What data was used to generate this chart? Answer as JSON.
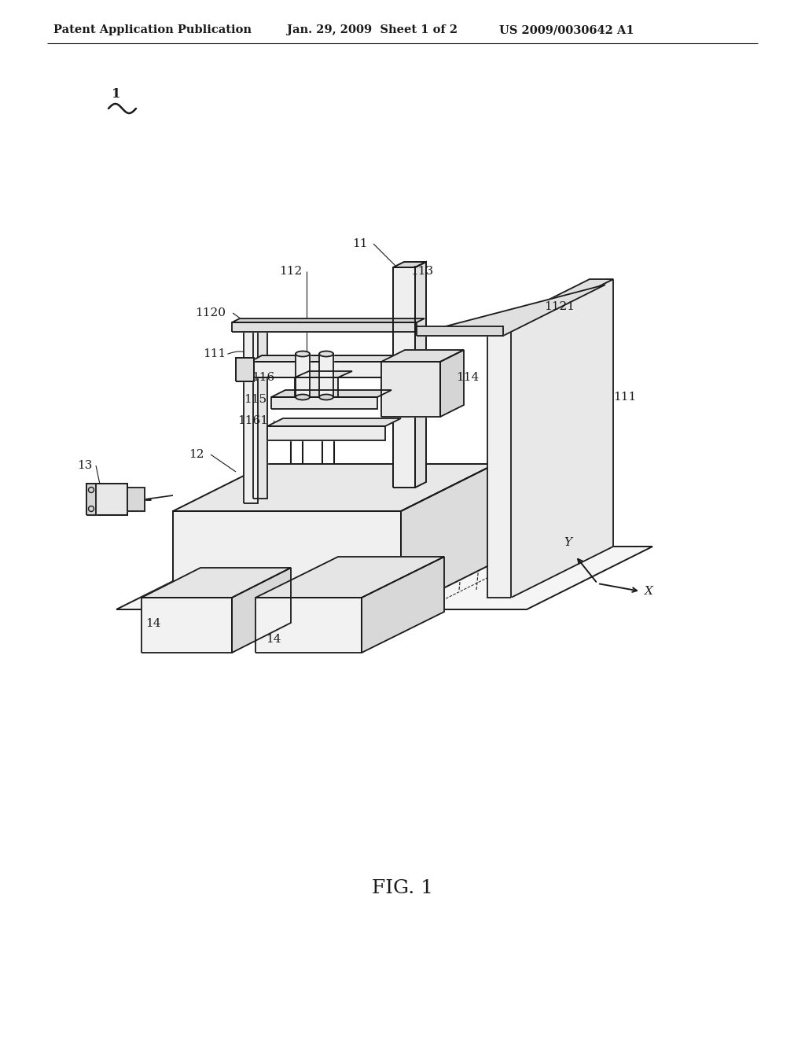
{
  "bg_color": "#ffffff",
  "line_color": "#1a1a1a",
  "header_left": "Patent Application Publication",
  "header_mid": "Jan. 29, 2009  Sheet 1 of 2",
  "header_right": "US 2009/0030642 A1",
  "fig_label": "FIG. 1",
  "header_fontsize": 10.5,
  "label_fontsize": 11,
  "fig_label_fontsize": 18
}
